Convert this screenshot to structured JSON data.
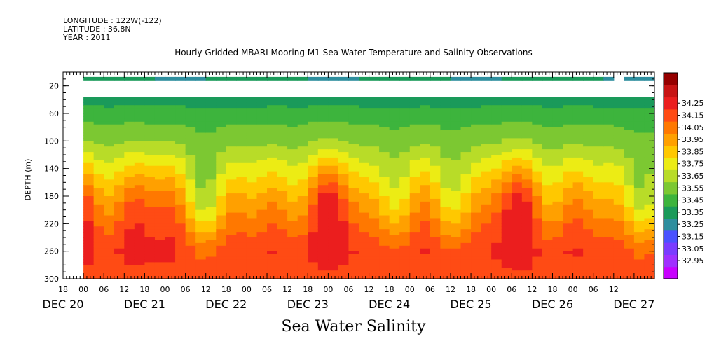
{
  "meta": {
    "longitude": "LONGITUDE : 122W(-122)",
    "latitude": "LATITUDE : 36.8N",
    "year": "YEAR : 2011"
  },
  "chart_data": {
    "type": "heatmap",
    "title": "Hourly Gridded MBARI Mooring M1 Sea Water Temperature and Salinity Observations",
    "bottom_title": "Sea Water Salinity",
    "ylabel": "DEPTH (m)",
    "y_axis": {
      "range": [
        0,
        300
      ],
      "inverted": true,
      "ticks": [
        20,
        60,
        100,
        140,
        180,
        220,
        260,
        300
      ]
    },
    "x_axis": {
      "range_hours": [
        "2011-12-20 18:00",
        "2011-12-27 23:00"
      ],
      "hour_ticks": [
        "18",
        "00",
        "06",
        "12",
        "18",
        "00",
        "06",
        "12",
        "18",
        "00",
        "06",
        "12",
        "18",
        "00",
        "06",
        "12",
        "18",
        "00",
        "06",
        "12",
        "18",
        "00",
        "06",
        "12",
        "18",
        "00",
        "06",
        "12"
      ],
      "day_labels": [
        "DEC 20",
        "DEC 21",
        "DEC 22",
        "DEC 23",
        "DEC 24",
        "DEC 25",
        "DEC 26",
        "DEC 27"
      ]
    },
    "colorbar": {
      "levels": [
        "32.95",
        "33.05",
        "33.15",
        "33.25",
        "33.35",
        "33.45",
        "33.55",
        "33.65",
        "33.75",
        "33.85",
        "33.95",
        "34.05",
        "34.15",
        "34.25"
      ],
      "colors": [
        "#c800ff",
        "#a030ff",
        "#7a3cff",
        "#4a52ff",
        "#2e8e9e",
        "#1a9a5a",
        "#3db43d",
        "#7cc832",
        "#b8dc28",
        "#ecec14",
        "#ffc800",
        "#ffa000",
        "#ff7800",
        "#ff4b14",
        "#eb1e1e",
        "#c81414",
        "#960000"
      ]
    },
    "profile": {
      "depth": [
        10,
        40,
        60,
        100,
        140,
        180,
        220,
        260,
        300
      ],
      "salinity": [
        33.33,
        33.4,
        33.5,
        33.62,
        33.8,
        33.98,
        34.12,
        34.24,
        34.2
      ]
    }
  }
}
